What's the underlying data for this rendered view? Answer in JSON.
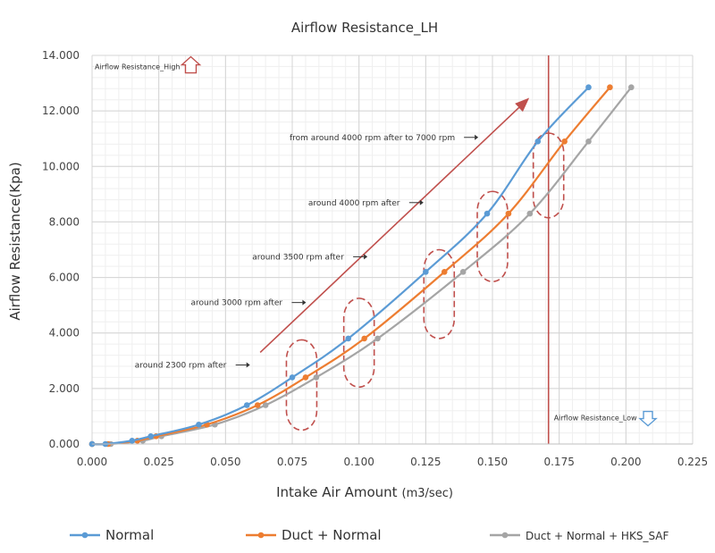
{
  "chart_data": {
    "type": "line",
    "title": "Airflow Resistance_LH",
    "xlabel": "Intake Air Amount",
    "xlabel_unit": "(m3/sec)",
    "ylabel": "Airflow Resistance(Kpa)",
    "xlim": [
      0,
      0.225
    ],
    "ylim": [
      0,
      14
    ],
    "grid": true,
    "legend_position": "bottom",
    "x_ticks": [
      "0.000",
      "0.025",
      "0.050",
      "0.075",
      "0.100",
      "0.125",
      "0.150",
      "0.175",
      "0.200",
      "0.225"
    ],
    "y_ticks": [
      "0.000",
      "2.000",
      "4.000",
      "6.000",
      "8.000",
      "10.000",
      "12.000",
      "14.000"
    ],
    "series": [
      {
        "name": "Normal",
        "color": "#5b9bd5",
        "x": [
          0.0,
          0.005,
          0.015,
          0.022,
          0.04,
          0.058,
          0.075,
          0.096,
          0.125,
          0.148,
          0.167,
          0.186
        ],
        "y": [
          0.0,
          0.0,
          0.12,
          0.28,
          0.7,
          1.4,
          2.4,
          3.8,
          6.2,
          8.3,
          10.9,
          12.85
        ]
      },
      {
        "name": "Duct + Normal",
        "color": "#ed7d31",
        "x": [
          0.0,
          0.006,
          0.017,
          0.024,
          0.043,
          0.062,
          0.08,
          0.102,
          0.132,
          0.156,
          0.177,
          0.194
        ],
        "y": [
          0.0,
          0.0,
          0.12,
          0.28,
          0.7,
          1.4,
          2.4,
          3.8,
          6.2,
          8.3,
          10.9,
          12.85
        ]
      },
      {
        "name": "Duct + Normal + HKS_SAF",
        "color": "#a5a5a5",
        "x": [
          0.0,
          0.007,
          0.019,
          0.026,
          0.046,
          0.065,
          0.084,
          0.107,
          0.139,
          0.164,
          0.186,
          0.202
        ],
        "y": [
          0.0,
          0.0,
          0.12,
          0.28,
          0.7,
          1.4,
          2.4,
          3.8,
          6.2,
          8.3,
          10.9,
          12.85
        ]
      }
    ],
    "vertical_marker": {
      "x": 0.171,
      "color": "#c0504d"
    },
    "annotations": [
      {
        "text": "Airflow Resistance_High",
        "x": 0.001,
        "y": 13.5,
        "arrow": "up"
      },
      {
        "text": "Airflow Resistance_Low",
        "x": 0.173,
        "y": 0.85,
        "arrow": "down"
      },
      {
        "text": "around 2300 rpm after",
        "x": 0.016,
        "y": 2.75
      },
      {
        "text": "around 3000 rpm after",
        "x": 0.037,
        "y": 5.0
      },
      {
        "text": "around 3500 rpm after",
        "x": 0.06,
        "y": 6.65
      },
      {
        "text": "around 4000 rpm after",
        "x": 0.081,
        "y": 8.6
      },
      {
        "text": "from around 4000 rpm after to 7000 rpm",
        "x": 0.074,
        "y": 10.95
      }
    ],
    "rpm_regions": [
      {
        "x_center": 0.0785,
        "y_min": 0.5,
        "y_max": 3.75
      },
      {
        "x_center": 0.1,
        "y_min": 2.05,
        "y_max": 5.25
      },
      {
        "x_center": 0.13,
        "y_min": 3.8,
        "y_max": 7.0
      },
      {
        "x_center": 0.15,
        "y_min": 5.85,
        "y_max": 9.1
      },
      {
        "x_center": 0.171,
        "y_min": 8.15,
        "y_max": 11.2
      }
    ],
    "trend_arrow": {
      "x1": 0.063,
      "y1": 3.3,
      "x2": 0.163,
      "y2": 12.4,
      "color": "#c0504d"
    }
  }
}
